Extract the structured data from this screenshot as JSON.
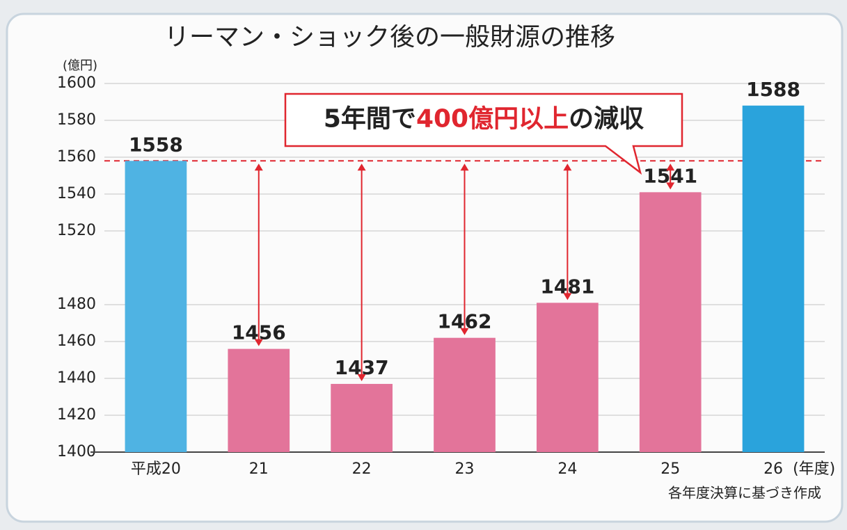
{
  "chart_data": {
    "type": "bar",
    "title": "リーマン・ショック後の一般財源の推移",
    "y_unit": "(億円)",
    "x_unit": "(年度)",
    "note": "各年度決算に基づき作成",
    "annotation": [
      "5年間で",
      "400億円以上",
      "の減収"
    ],
    "annotation_colors": [
      "#222222",
      "#e0262f",
      "#222222"
    ],
    "categories": [
      "平成20",
      "21",
      "22",
      "23",
      "24",
      "25",
      "26"
    ],
    "values": [
      1558,
      1456,
      1437,
      1462,
      1481,
      1541,
      1588
    ],
    "colors": [
      "#4fb3e3",
      "#e3749a",
      "#e3749a",
      "#e3749a",
      "#e3749a",
      "#e3749a",
      "#2aa3dc"
    ],
    "reference_line": {
      "value": 1558,
      "color": "#e0262f"
    },
    "ylim": [
      1400,
      1600
    ],
    "yticks": [
      1400,
      1420,
      1440,
      1460,
      1480,
      1520,
      1540,
      1560,
      1580,
      1600
    ],
    "grid": true
  }
}
